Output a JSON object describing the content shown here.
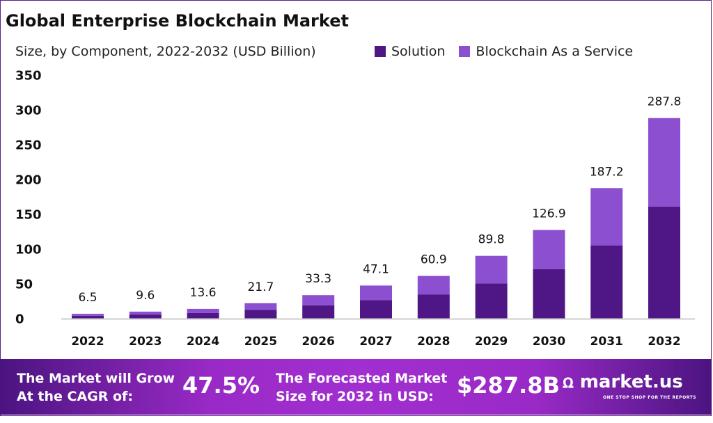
{
  "chart_data": {
    "type": "bar",
    "stacked": true,
    "title": "Global Enterprise Blockchain Market",
    "subtitle": "Size, by Component, 2022-2032 (USD Billion)",
    "categories": [
      "2022",
      "2023",
      "2024",
      "2025",
      "2026",
      "2027",
      "2028",
      "2029",
      "2030",
      "2031",
      "2032"
    ],
    "totals": [
      6.5,
      9.6,
      13.6,
      21.7,
      33.3,
      47.1,
      60.9,
      89.8,
      126.9,
      187.2,
      287.8
    ],
    "total_labels": [
      "6.5",
      "9.6",
      "13.6",
      "21.7",
      "33.3",
      "47.1",
      "60.9",
      "89.8",
      "126.9",
      "187.2",
      "287.8"
    ],
    "series": [
      {
        "name": "Solution",
        "color": "#4f1785",
        "values": [
          3.6,
          5.4,
          7.6,
          12.1,
          18.6,
          26.3,
          34.0,
          50.1,
          70.8,
          104.5,
          160.6
        ]
      },
      {
        "name": "Blockchain As a Service",
        "color": "#8c4fcf",
        "values": [
          2.9,
          4.2,
          6.0,
          9.6,
          14.7,
          20.8,
          26.9,
          39.7,
          56.1,
          82.7,
          127.2
        ]
      }
    ],
    "yticks": [
      "0",
      "50",
      "100",
      "150",
      "200",
      "250",
      "300",
      "350"
    ],
    "ylim": [
      0,
      350
    ],
    "grid": false,
    "legend": "top-right"
  },
  "banner": {
    "cagr_text_1": "The Market will Grow",
    "cagr_text_2": "At the CAGR of:",
    "cagr_value": "47.5%",
    "forecast_text_1": "The Forecasted Market",
    "forecast_text_2": "Size for 2032 in USD:",
    "forecast_value": "$287.8B",
    "logo": "market.us",
    "tagline": "ONE STOP SHOP FOR THE REPORTS"
  }
}
